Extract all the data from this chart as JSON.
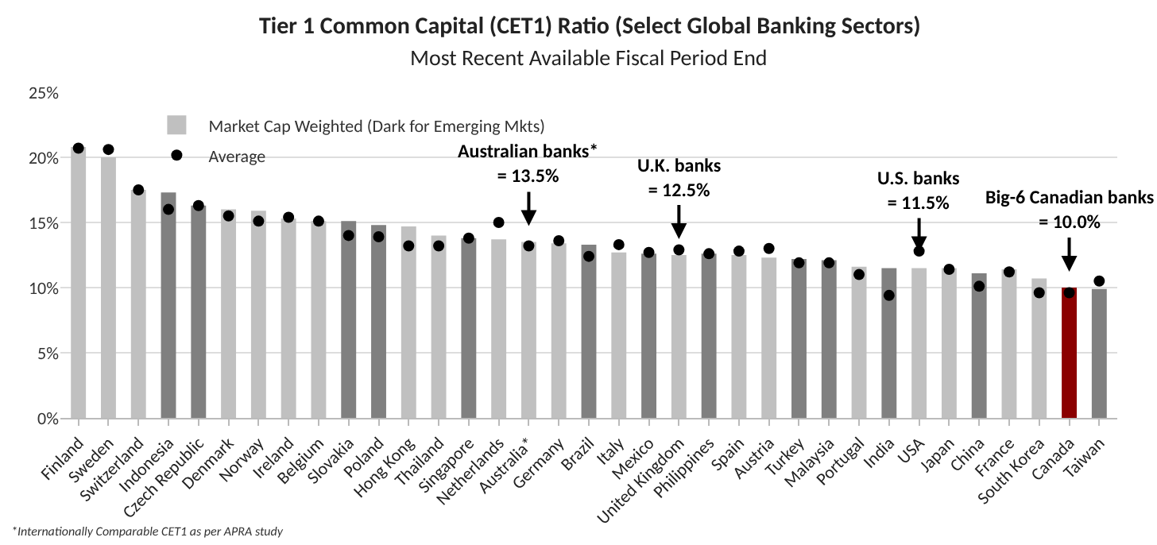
{
  "chart_data": {
    "type": "bar",
    "title": "Tier 1 Common Capital (CET1) Ratio (Select Global Banking Sectors)",
    "subtitle": "Most Recent Available Fiscal Period End",
    "categories": [
      "Finland",
      "Sweden",
      "Switzerland",
      "Indonesia",
      "Czech Republic",
      "Denmark",
      "Norway",
      "Ireland",
      "Belgium",
      "Slovakia",
      "Poland",
      "Hong Kong",
      "Thailand",
      "Singapore",
      "Netherlands",
      "Australia*",
      "Germany",
      "Brazil",
      "Italy",
      "Mexico",
      "United Kingdom",
      "Philippines",
      "Spain",
      "Austria",
      "Turkey",
      "Malaysia",
      "Portugal",
      "India",
      "USA",
      "Japan",
      "China",
      "France",
      "South Korea",
      "Canada",
      "Taiwan"
    ],
    "series": [
      {
        "name": "Market Cap Weighted (Dark for Emerging Mkts)",
        "colors": [
          "#c0c0c0",
          "#c0c0c0",
          "#c0c0c0",
          "#808080",
          "#808080",
          "#c0c0c0",
          "#c0c0c0",
          "#c0c0c0",
          "#c0c0c0",
          "#808080",
          "#808080",
          "#c0c0c0",
          "#c0c0c0",
          "#808080",
          "#c0c0c0",
          "#c0c0c0",
          "#c0c0c0",
          "#808080",
          "#c0c0c0",
          "#808080",
          "#c0c0c0",
          "#808080",
          "#c0c0c0",
          "#c0c0c0",
          "#808080",
          "#808080",
          "#c0c0c0",
          "#808080",
          "#c0c0c0",
          "#c0c0c0",
          "#808080",
          "#c0c0c0",
          "#c0c0c0",
          "#8b0000",
          "#808080"
        ],
        "values": [
          20.8,
          20.0,
          17.5,
          17.3,
          16.3,
          16.0,
          15.9,
          15.3,
          15.1,
          15.1,
          14.8,
          14.7,
          14.0,
          13.8,
          13.7,
          13.5,
          13.4,
          13.3,
          12.7,
          12.6,
          12.5,
          12.6,
          12.5,
          12.3,
          12.2,
          12.1,
          11.6,
          11.5,
          11.5,
          11.5,
          11.1,
          11.4,
          10.7,
          10.0,
          9.9
        ]
      },
      {
        "name": "Average",
        "type": "scatter",
        "color": "#000000",
        "marker": "circle",
        "values": [
          20.7,
          20.6,
          17.5,
          16.0,
          16.3,
          15.5,
          15.1,
          15.4,
          15.1,
          14.0,
          13.9,
          13.2,
          13.2,
          13.8,
          15.0,
          13.2,
          13.6,
          12.4,
          13.3,
          12.7,
          12.9,
          12.6,
          12.8,
          13.0,
          11.9,
          11.9,
          11.0,
          9.4,
          12.8,
          11.4,
          10.1,
          11.2,
          9.6,
          9.6,
          10.5
        ]
      }
    ],
    "ylim": [
      0,
      25
    ],
    "yticks": [
      {
        "value": 0,
        "label": "0%"
      },
      {
        "value": 5,
        "label": "5%"
      },
      {
        "value": 10,
        "label": "10%"
      },
      {
        "value": 15,
        "label": "15%"
      },
      {
        "value": 20,
        "label": "20%"
      },
      {
        "value": 25,
        "label": "25%"
      }
    ],
    "grid": "y",
    "legend": "top left",
    "annotations": [
      {
        "text": "Australian banks*\n= 13.5%",
        "x": "Australia*",
        "y": 13.5
      },
      {
        "text": "U.K. banks\n= 12.5%",
        "x": "United Kingdom",
        "y": 12.5
      },
      {
        "text": "U.S. banks\n= 11.5%",
        "x": "USA",
        "y": 11.5
      },
      {
        "text": "Big-6 Canadian banks\n= 10.0%",
        "x": "Canada",
        "y": 10.0
      },
      "*Internationally Comparable CET1 as per APRA study"
    ]
  }
}
